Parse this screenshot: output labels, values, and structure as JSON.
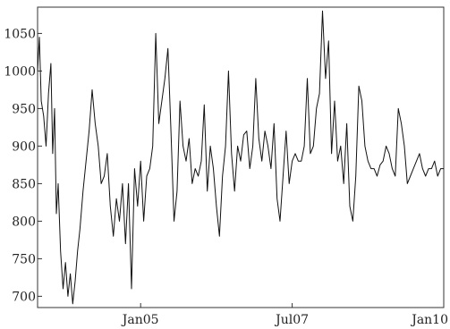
{
  "chart_data": {
    "type": "line",
    "title": "",
    "xlabel": "",
    "ylabel": "",
    "grid": false,
    "xlim": [
      2003.3,
      2010.0
    ],
    "ylim": [
      685,
      1085
    ],
    "x_ticks": [
      {
        "value": 2005.0,
        "label": "Jan05"
      },
      {
        "value": 2007.5,
        "label": "Jul07"
      },
      {
        "value": 2010.0,
        "label": "Jan10"
      }
    ],
    "y_ticks": [
      {
        "value": 700,
        "label": "700"
      },
      {
        "value": 750,
        "label": "750"
      },
      {
        "value": 800,
        "label": "800"
      },
      {
        "value": 850,
        "label": "850"
      },
      {
        "value": 900,
        "label": "900"
      },
      {
        "value": 950,
        "label": "950"
      },
      {
        "value": 1000,
        "label": "1000"
      },
      {
        "value": 1050,
        "label": "1050"
      }
    ],
    "series": [
      {
        "x": [
          2003.3,
          2003.33,
          2003.36,
          2003.4,
          2003.44,
          2003.48,
          2003.52,
          2003.55,
          2003.58,
          2003.61,
          2003.64,
          2003.68,
          2003.72,
          2003.76,
          2003.8,
          2003.84,
          2003.88,
          2003.92,
          2003.96,
          2004.0,
          2004.05,
          2004.1,
          2004.15,
          2004.2,
          2004.25,
          2004.3,
          2004.35,
          2004.4,
          2004.45,
          2004.5,
          2004.55,
          2004.6,
          2004.65,
          2004.7,
          2004.75,
          2004.8,
          2004.85,
          2004.9,
          2004.95,
          2005.0,
          2005.05,
          2005.1,
          2005.15,
          2005.2,
          2005.25,
          2005.3,
          2005.35,
          2005.4,
          2005.45,
          2005.5,
          2005.55,
          2005.6,
          2005.65,
          2005.7,
          2005.75,
          2005.8,
          2005.85,
          2005.9,
          2005.95,
          2006.0,
          2006.05,
          2006.1,
          2006.15,
          2006.2,
          2006.25,
          2006.3,
          2006.35,
          2006.4,
          2006.45,
          2006.5,
          2006.55,
          2006.6,
          2006.65,
          2006.7,
          2006.75,
          2006.8,
          2006.85,
          2006.9,
          2006.95,
          2007.0,
          2007.05,
          2007.1,
          2007.15,
          2007.2,
          2007.25,
          2007.3,
          2007.35,
          2007.4,
          2007.45,
          2007.5,
          2007.55,
          2007.6,
          2007.65,
          2007.7,
          2007.75,
          2007.8,
          2007.85,
          2007.9,
          2007.95,
          2008.0,
          2008.05,
          2008.1,
          2008.15,
          2008.2,
          2008.25,
          2008.3,
          2008.35,
          2008.4,
          2008.45,
          2008.5,
          2008.55,
          2008.6,
          2008.65,
          2008.7,
          2008.75,
          2008.8,
          2008.85,
          2008.9,
          2008.95,
          2009.0,
          2009.05,
          2009.1,
          2009.15,
          2009.2,
          2009.25,
          2009.3,
          2009.35,
          2009.4,
          2009.45,
          2009.5,
          2009.55,
          2009.6,
          2009.65,
          2009.7,
          2009.75,
          2009.8,
          2009.85,
          2009.9,
          2009.95,
          2010.0
        ],
        "y": [
          1000,
          1045,
          960,
          940,
          900,
          970,
          1010,
          890,
          950,
          810,
          850,
          760,
          710,
          745,
          700,
          730,
          690,
          720,
          760,
          790,
          840,
          880,
          920,
          975,
          930,
          900,
          850,
          860,
          890,
          820,
          780,
          830,
          800,
          850,
          770,
          850,
          710,
          870,
          820,
          880,
          800,
          860,
          870,
          900,
          1050,
          930,
          960,
          990,
          1030,
          920,
          800,
          840,
          960,
          900,
          880,
          910,
          850,
          870,
          860,
          880,
          955,
          840,
          900,
          870,
          820,
          780,
          860,
          900,
          1000,
          890,
          840,
          900,
          880,
          915,
          920,
          870,
          900,
          990,
          910,
          880,
          920,
          900,
          870,
          930,
          830,
          800,
          860,
          920,
          850,
          880,
          890,
          880,
          880,
          900,
          990,
          890,
          900,
          950,
          970,
          1080,
          990,
          1040,
          890,
          960,
          880,
          900,
          850,
          930,
          820,
          800,
          860,
          980,
          960,
          900,
          880,
          870,
          870,
          860,
          875,
          880,
          900,
          890,
          870,
          860,
          950,
          930,
          900,
          850,
          860,
          870,
          880,
          890,
          870,
          860,
          870,
          870,
          880,
          860,
          870,
          870
        ]
      }
    ]
  }
}
